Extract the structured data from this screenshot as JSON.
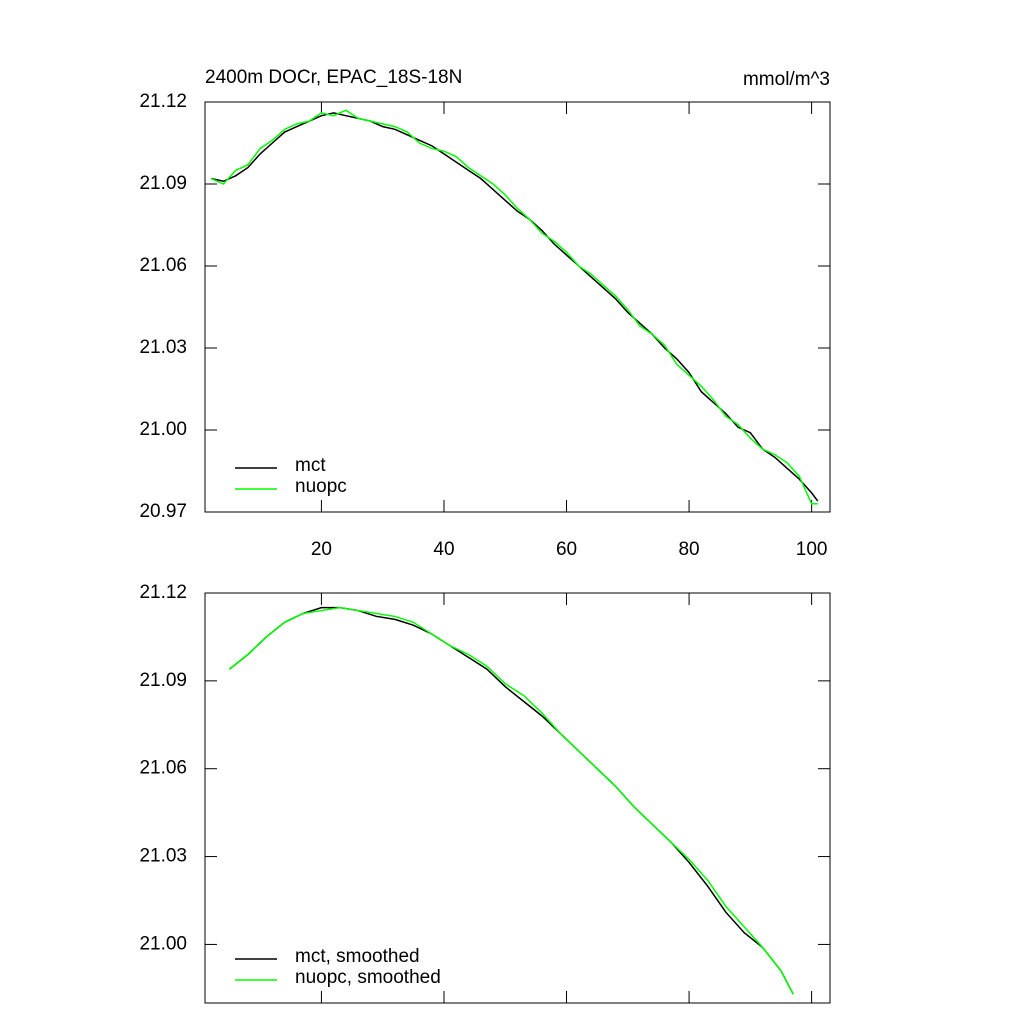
{
  "chart_data": [
    {
      "type": "line",
      "title": "2400m DOCr, EPAC_18S-18N",
      "subtitle": "mmol/m^3",
      "x": [
        2,
        4,
        6,
        8,
        10,
        12,
        14,
        16,
        18,
        20,
        22,
        24,
        26,
        28,
        30,
        32,
        34,
        36,
        38,
        40,
        42,
        44,
        46,
        48,
        50,
        52,
        54,
        56,
        58,
        60,
        62,
        64,
        66,
        68,
        70,
        72,
        74,
        76,
        78,
        80,
        82,
        84,
        86,
        88,
        90,
        92,
        94,
        96,
        98,
        100,
        101
      ],
      "series": [
        {
          "name": "mct",
          "color": "#000000",
          "values": [
            21.092,
            21.091,
            21.093,
            21.096,
            21.101,
            21.105,
            21.109,
            21.111,
            21.113,
            21.115,
            21.116,
            21.115,
            21.114,
            21.113,
            21.111,
            21.11,
            21.108,
            21.106,
            21.104,
            21.101,
            21.098,
            21.095,
            21.092,
            21.088,
            21.084,
            21.08,
            21.077,
            21.073,
            21.068,
            21.064,
            21.06,
            21.056,
            21.052,
            21.048,
            21.043,
            21.039,
            21.035,
            21.03,
            21.026,
            21.021,
            21.014,
            21.01,
            21.006,
            21.001,
            20.999,
            20.993,
            20.99,
            20.986,
            20.982,
            20.977,
            20.974
          ]
        },
        {
          "name": "nuopc",
          "color": "#00ff00",
          "values": [
            21.092,
            21.09,
            21.095,
            21.097,
            21.103,
            21.106,
            21.11,
            21.112,
            21.113,
            21.116,
            21.115,
            21.117,
            21.114,
            21.113,
            21.112,
            21.111,
            21.109,
            21.105,
            21.103,
            21.102,
            21.1,
            21.096,
            21.093,
            21.09,
            21.086,
            21.081,
            21.077,
            21.072,
            21.069,
            21.065,
            21.06,
            21.057,
            21.053,
            21.049,
            21.044,
            21.038,
            21.035,
            21.031,
            21.024,
            21.02,
            21.016,
            21.011,
            21.005,
            21.002,
            20.997,
            20.993,
            20.991,
            20.988,
            20.983,
            20.973,
            20.973
          ]
        }
      ],
      "xlim": [
        1,
        103
      ],
      "xticks": [
        20,
        40,
        60,
        80,
        100
      ],
      "show_xtick_labels": true,
      "ylim": [
        20.97,
        21.12
      ],
      "yticks": [
        21.12,
        21.09,
        21.06,
        21.03,
        {
          "value": 21,
          "label": "21.00"
        },
        20.97
      ]
    },
    {
      "type": "line",
      "x": [
        5,
        8,
        11,
        14,
        17,
        20,
        23,
        26,
        29,
        32,
        35,
        38,
        41,
        44,
        47,
        50,
        53,
        56,
        59,
        62,
        65,
        68,
        71,
        74,
        77,
        80,
        83,
        86,
        89,
        92,
        95,
        97
      ],
      "series": [
        {
          "name": "mct, smoothed",
          "color": "#000000",
          "values": [
            21.094,
            21.099,
            21.105,
            21.11,
            21.113,
            21.115,
            21.115,
            21.114,
            21.112,
            21.111,
            21.109,
            21.106,
            21.102,
            21.098,
            21.094,
            21.088,
            21.083,
            21.078,
            21.072,
            21.066,
            21.06,
            21.054,
            21.047,
            21.041,
            21.035,
            21.028,
            21.02,
            21.011,
            21.004,
            20.999,
            20.991,
            20.983
          ]
        },
        {
          "name": "nuopc, smoothed",
          "color": "#00ff00",
          "values": [
            21.094,
            21.099,
            21.105,
            21.11,
            21.113,
            21.114,
            21.115,
            21.114,
            21.113,
            21.112,
            21.11,
            21.106,
            21.102,
            21.099,
            21.095,
            21.089,
            21.085,
            21.079,
            21.072,
            21.066,
            21.06,
            21.054,
            21.047,
            21.041,
            21.035,
            21.029,
            21.022,
            21.013,
            21.006,
            20.999,
            20.991,
            20.983
          ]
        }
      ],
      "xlim": [
        1,
        103
      ],
      "xticks": [
        20,
        40,
        60,
        80,
        100
      ],
      "show_xtick_labels": false,
      "ylim": [
        20.98,
        21.12
      ],
      "yticks": [
        21.12,
        21.09,
        21.06,
        21.03,
        {
          "value": 21,
          "label": "21.00"
        }
      ]
    }
  ]
}
